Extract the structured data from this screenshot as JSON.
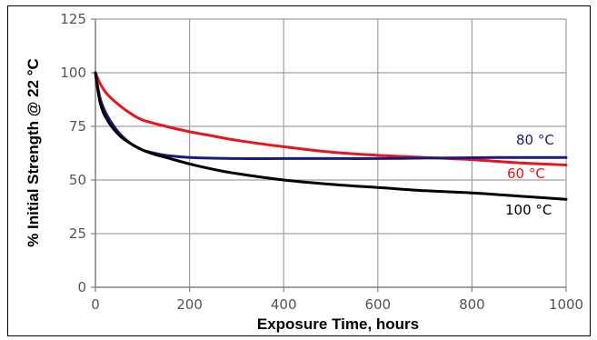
{
  "header_fragment": "",
  "colors": {
    "grid": "#a0a0a0",
    "axis": "#808080",
    "tick_label": "#555555",
    "series_80": "#1a1a7e",
    "series_60": "#e8141e",
    "series_100": "#000000"
  },
  "chart_data": {
    "type": "line",
    "title": "",
    "xlabel": "Exposure Time, hours",
    "ylabel": "% Initial Strength @ 22 °C",
    "xlim": [
      0,
      1000
    ],
    "ylim": [
      0,
      125
    ],
    "xticks": [
      0,
      200,
      400,
      600,
      800,
      1000
    ],
    "yticks": [
      0,
      25,
      50,
      75,
      100,
      125
    ],
    "grid": true,
    "legend": "inline-right",
    "series": [
      {
        "name": "80 °C",
        "color": "#1a1a7e",
        "x": [
          0,
          10,
          25,
          50,
          75,
          100,
          125,
          150,
          200,
          300,
          400,
          500,
          600,
          700,
          800,
          900,
          1000
        ],
        "y": [
          100,
          88,
          80,
          72,
          67,
          64,
          62.5,
          61.5,
          60.5,
          60,
          60,
          60,
          60,
          60.2,
          60.4,
          60.5,
          60.5
        ]
      },
      {
        "name": "60 °C",
        "color": "#e8141e",
        "x": [
          0,
          10,
          25,
          50,
          75,
          100,
          150,
          200,
          250,
          300,
          400,
          500,
          600,
          700,
          800,
          900,
          1000
        ],
        "y": [
          100,
          95,
          90,
          85,
          81,
          78,
          75,
          72.5,
          70.5,
          68.5,
          65.5,
          63,
          61.5,
          60.5,
          59.5,
          58,
          57
        ]
      },
      {
        "name": "100 °C",
        "color": "#000000",
        "x": [
          0,
          10,
          25,
          50,
          75,
          100,
          125,
          150,
          200,
          250,
          300,
          400,
          500,
          600,
          700,
          800,
          900,
          1000
        ],
        "y": [
          100,
          86,
          78,
          71,
          67,
          64,
          62,
          60.5,
          57.5,
          55,
          53,
          50,
          48,
          46.5,
          45,
          44,
          42.5,
          41
        ]
      }
    ]
  }
}
